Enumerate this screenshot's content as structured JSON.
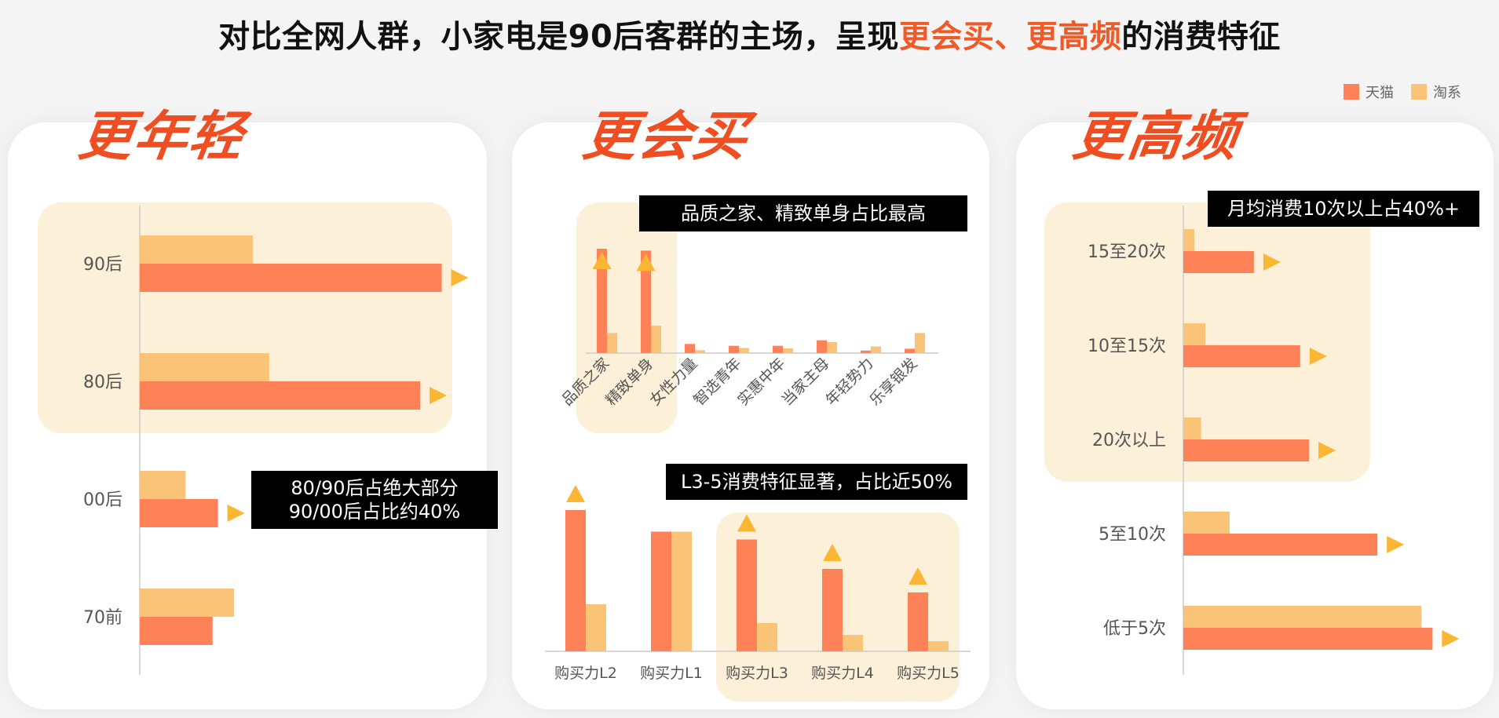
{
  "header": {
    "title_part1": "对比全网人群，小家电是90后客群的主场，呈现",
    "title_highlight1": "更会买",
    "title_sep": "、",
    "title_highlight2": "更高频",
    "title_part2": "的消费特征"
  },
  "legend": [
    {
      "label": "天猫",
      "color": "#ff8157"
    },
    {
      "label": "淘系",
      "color": "#f9c477"
    }
  ],
  "colors": {
    "tmall": "#ff8157",
    "taoxi": "#f9c477",
    "highlight_bg": "#fdf0d8",
    "marker": "#fbb733",
    "axis": "#cccccc"
  },
  "panels": {
    "younger": {
      "title": "更年轻",
      "callout_lines": [
        "80/90后占绝大部分",
        "90/00后占比约40%"
      ]
    },
    "buy_more": {
      "title": "更会买",
      "callout_top": "品质之家、精致单身占比最高",
      "callout_bottom": "L3-5消费特征显著，占比近50%"
    },
    "frequent": {
      "title": "更高频",
      "callout": "月均消费10次以上占40%+"
    }
  },
  "chart_data": [
    {
      "type": "bar",
      "orientation": "horizontal",
      "categories": [
        "90后",
        "80后",
        "00后",
        "70前"
      ],
      "series": [
        {
          "name": "淘系",
          "values": [
            21,
            24,
            8.5,
            17.5
          ]
        },
        {
          "name": "天猫",
          "values": [
            56,
            52,
            14.5,
            13.5
          ]
        }
      ],
      "xlim": [
        0,
        60
      ],
      "highlighted": [
        "90后",
        "80后"
      ],
      "marker": "arrow-right",
      "marked": [
        "90后",
        "80后",
        "00后"
      ]
    },
    {
      "type": "bar",
      "categories": [
        "品质之家",
        "精致单身",
        "女性力量",
        "智选青年",
        "实惠中年",
        "当家主母",
        "年轻势力",
        "乐享银发"
      ],
      "series": [
        {
          "name": "天猫",
          "values": [
            28.5,
            28,
            2.5,
            2,
            2,
            3.5,
            0.7,
            1.2
          ]
        },
        {
          "name": "淘系",
          "values": [
            5.5,
            7.5,
            0.8,
            1.4,
            1.3,
            3,
            1.8,
            5.5
          ]
        }
      ],
      "ylim": [
        0,
        30
      ],
      "highlighted": [
        "品质之家",
        "精致单身"
      ],
      "marker": "arrow-up",
      "marked": [
        "品质之家",
        "精致单身"
      ]
    },
    {
      "type": "bar",
      "categories": [
        "购买力L2",
        "购买力L1",
        "购买力L3",
        "购买力L4",
        "购买力L5"
      ],
      "series": [
        {
          "name": "天猫",
          "values": [
            36,
            30.5,
            28.5,
            21,
            15
          ]
        },
        {
          "name": "淘系",
          "values": [
            12,
            30.5,
            7.2,
            4.2,
            2.6
          ]
        }
      ],
      "ylim": [
        0,
        40
      ],
      "highlighted": [
        "购买力L3",
        "购买力L4",
        "购买力L5"
      ],
      "marker": "arrow-up",
      "marked": [
        "购买力L2",
        "购买力L3",
        "购买力L4",
        "购买力L5"
      ]
    },
    {
      "type": "bar",
      "orientation": "horizontal",
      "categories": [
        "15至20次",
        "10至15次",
        "20次以上",
        "5至10次",
        "低于5次"
      ],
      "series": [
        {
          "name": "淘系",
          "values": [
            2.5,
            5,
            4,
            10.5,
            54
          ]
        },
        {
          "name": "天猫",
          "values": [
            16,
            26.5,
            28.5,
            44,
            56.5
          ]
        }
      ],
      "xlim": [
        0,
        60
      ],
      "highlighted": [
        "15至20次",
        "10至15次",
        "20次以上"
      ],
      "marker": "arrow-right",
      "marked": [
        "15至20次",
        "10至15次",
        "20次以上",
        "5至10次",
        "低于5次"
      ]
    }
  ]
}
